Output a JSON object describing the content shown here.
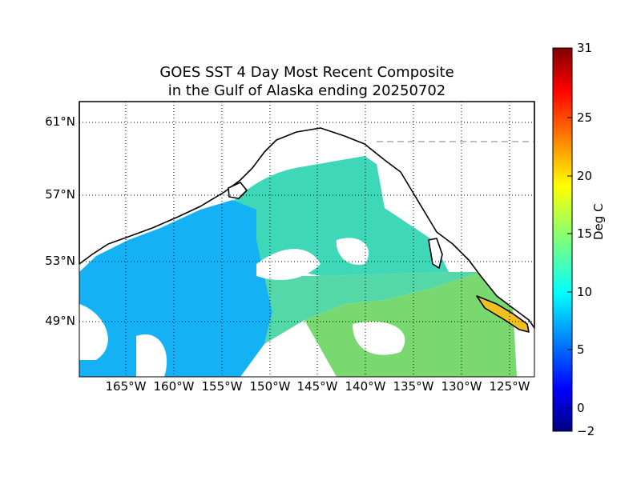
{
  "title_line1": "GOES SST 4 Day Most Recent Composite",
  "title_line2": "in the Gulf of Alaska ending 20250702",
  "lat_labels": [
    "61°N",
    "57°N",
    "53°N",
    "49°N"
  ],
  "lon_labels": [
    "165°W",
    "160°W",
    "155°W",
    "150°W",
    "145°W",
    "140°W",
    "135°W",
    "130°W",
    "125°W"
  ],
  "colorbar": {
    "label": "Deg C",
    "ticks": [
      "31",
      "25",
      "20",
      "15",
      "10",
      "5",
      "0",
      "−2"
    ],
    "min": -2,
    "max": 31,
    "colormap": "jet"
  },
  "colors": {
    "ocean_north": "#00a8ff",
    "ocean_mid": "#33ddcc",
    "ocean_south": "#7ae070",
    "coast": "#000000",
    "land": "#ffffff"
  }
}
